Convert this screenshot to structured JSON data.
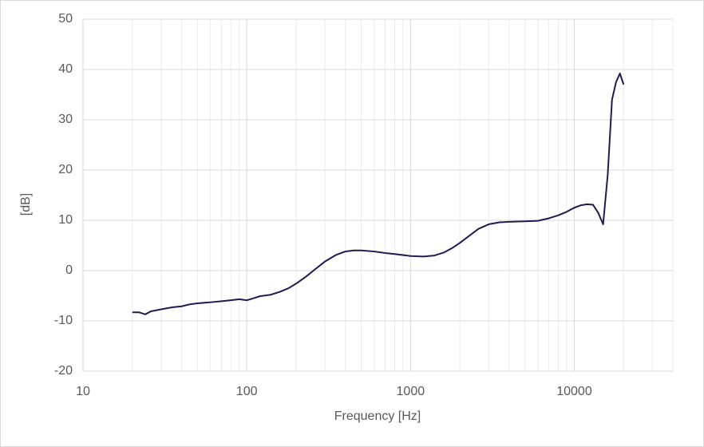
{
  "chart_data": {
    "type": "line",
    "x_label": "Frequency [Hz]",
    "y_label": "[dB]",
    "x": [
      20,
      22,
      24,
      26,
      28,
      30,
      35,
      40,
      45,
      50,
      60,
      70,
      80,
      90,
      100,
      110,
      120,
      140,
      160,
      180,
      200,
      230,
      260,
      300,
      350,
      400,
      450,
      500,
      600,
      700,
      800,
      1000,
      1200,
      1400,
      1600,
      1800,
      2000,
      2300,
      2600,
      3000,
      3500,
      4000,
      5000,
      6000,
      7000,
      8000,
      9000,
      10000,
      11000,
      12000,
      13000,
      14000,
      15000,
      16000,
      17000,
      18000,
      19000,
      20000
    ],
    "series": [
      {
        "color": "#1f1c4f",
        "values": [
          -8.3,
          -8.3,
          -8.7,
          -8.1,
          -7.9,
          -7.7,
          -7.3,
          -7.1,
          -6.7,
          -6.5,
          -6.3,
          -6.1,
          -5.9,
          -5.7,
          -5.9,
          -5.5,
          -5.1,
          -4.8,
          -4.2,
          -3.5,
          -2.6,
          -1.2,
          0.2,
          1.8,
          3.1,
          3.8,
          4.0,
          4.0,
          3.8,
          3.5,
          3.3,
          2.9,
          2.8,
          3.0,
          3.6,
          4.5,
          5.5,
          7.0,
          8.3,
          9.2,
          9.6,
          9.7,
          9.8,
          9.9,
          10.4,
          11.0,
          11.7,
          12.5,
          13.0,
          13.2,
          13.1,
          11.5,
          9.2,
          19,
          34,
          37.5,
          39.2,
          37
        ]
      }
    ],
    "xscale": "log",
    "xlim": [
      10,
      40000
    ],
    "xticks": [
      10,
      100,
      1000,
      10000
    ],
    "ylim": [
      -20,
      50
    ],
    "yticks": [
      -20,
      -10,
      0,
      10,
      20,
      30,
      40,
      50
    ],
    "grid": true,
    "minor_grid": true
  }
}
